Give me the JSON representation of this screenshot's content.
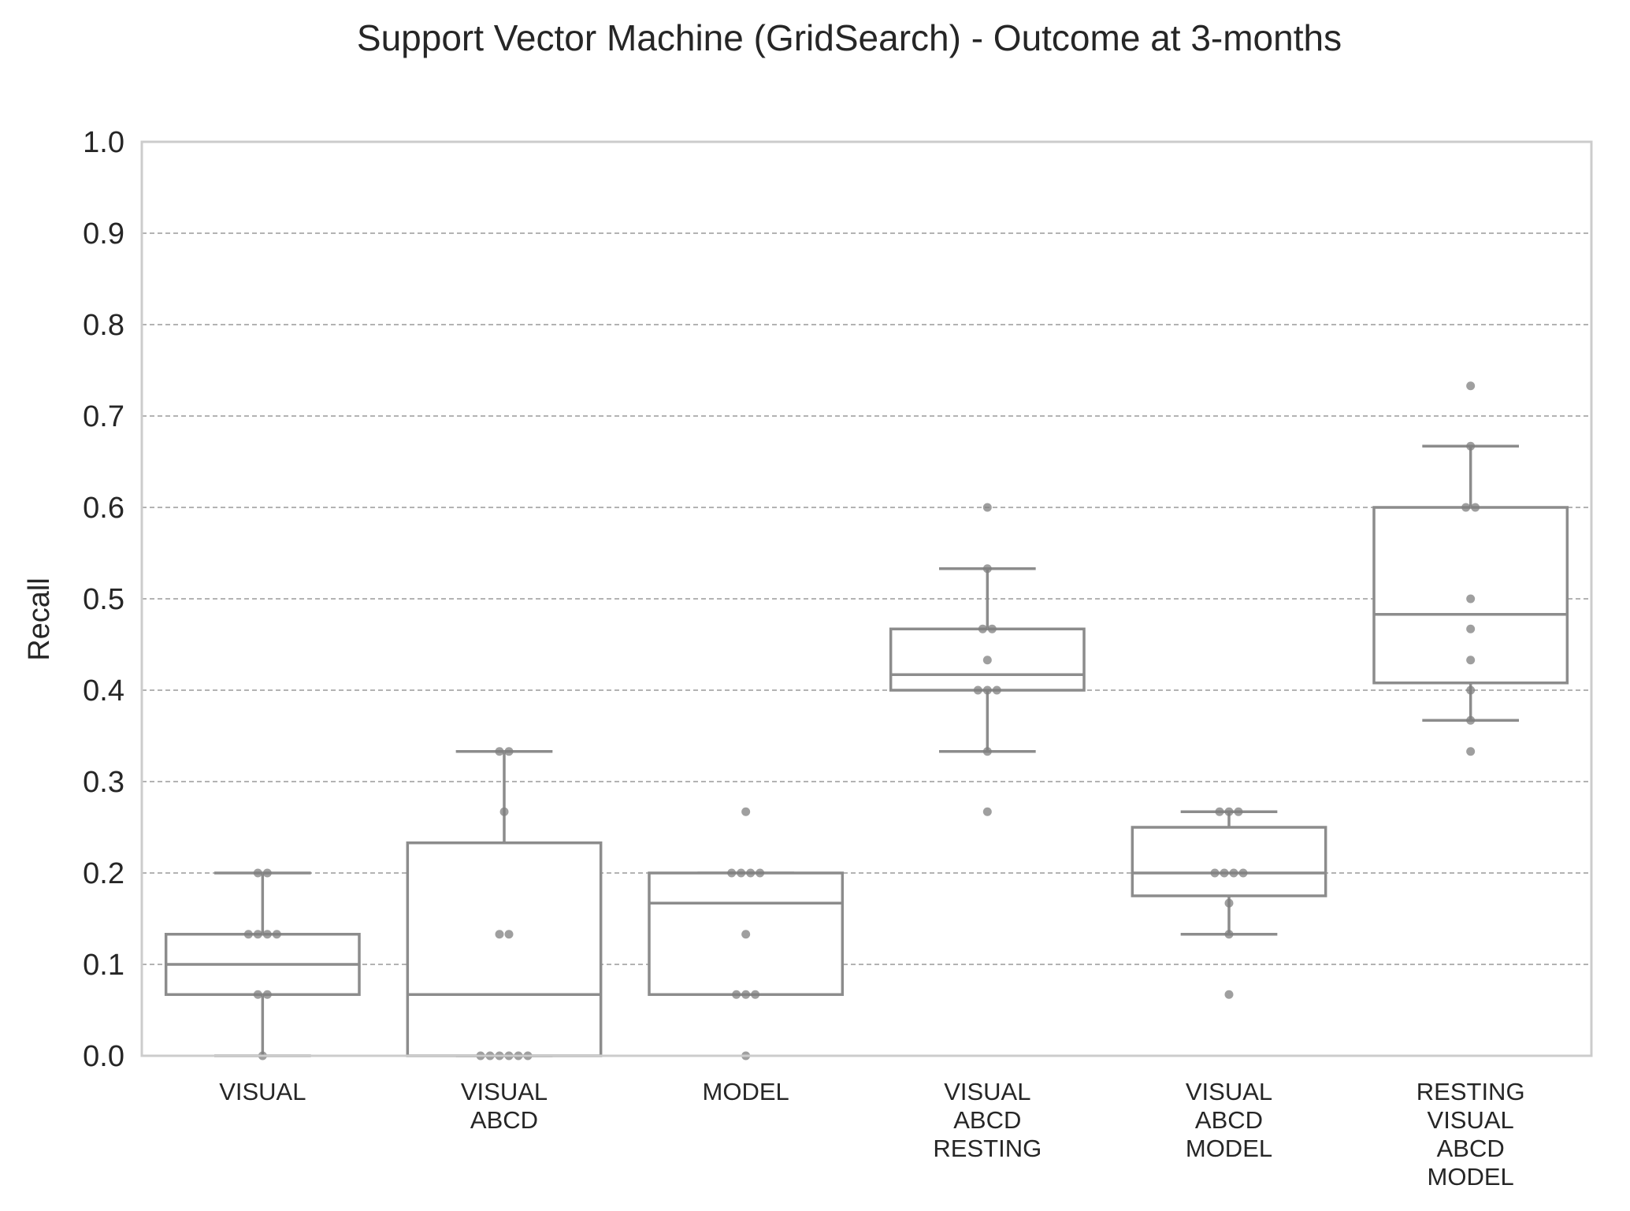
{
  "chart_data": {
    "type": "box",
    "title": "Support Vector Machine (GridSearch) - Outcome at 3-months",
    "ylabel": "Recall",
    "xlabel": "",
    "ylim": [
      0.0,
      1.0
    ],
    "yticks": [
      "0.0",
      "0.1",
      "0.2",
      "0.3",
      "0.4",
      "0.5",
      "0.6",
      "0.7",
      "0.8",
      "0.9",
      "1.0"
    ],
    "grid": true,
    "categories": [
      {
        "label_lines": [
          "VISUAL"
        ]
      },
      {
        "label_lines": [
          "VISUAL",
          "ABCD"
        ]
      },
      {
        "label_lines": [
          "MODEL"
        ]
      },
      {
        "label_lines": [
          "VISUAL",
          "ABCD",
          "RESTING"
        ]
      },
      {
        "label_lines": [
          "VISUAL",
          "ABCD",
          "MODEL"
        ]
      },
      {
        "label_lines": [
          "RESTING",
          "VISUAL",
          "ABCD",
          "MODEL"
        ]
      }
    ],
    "boxes": [
      {
        "whisker_low": 0.0,
        "q1": 0.067,
        "median": 0.1,
        "q3": 0.133,
        "whisker_high": 0.2
      },
      {
        "whisker_low": 0.0,
        "q1": 0.0,
        "median": 0.067,
        "q3": 0.233,
        "whisker_high": 0.333
      },
      {
        "whisker_low": 0.067,
        "q1": 0.067,
        "median": 0.167,
        "q3": 0.2,
        "whisker_high": 0.2
      },
      {
        "whisker_low": 0.333,
        "q1": 0.4,
        "median": 0.417,
        "q3": 0.467,
        "whisker_high": 0.533
      },
      {
        "whisker_low": 0.133,
        "q1": 0.175,
        "median": 0.2,
        "q3": 0.25,
        "whisker_high": 0.267
      },
      {
        "whisker_low": 0.367,
        "q1": 0.408,
        "median": 0.483,
        "q3": 0.6,
        "whisker_high": 0.667
      }
    ],
    "points": [
      [
        0.0,
        0.067,
        0.067,
        0.133,
        0.133,
        0.133,
        0.133,
        0.2,
        0.2
      ],
      [
        0.0,
        0.0,
        0.0,
        0.0,
        0.0,
        0.0,
        0.133,
        0.133,
        0.267,
        0.333,
        0.333
      ],
      [
        0.0,
        0.067,
        0.067,
        0.067,
        0.133,
        0.2,
        0.2,
        0.2,
        0.2,
        0.267
      ],
      [
        0.267,
        0.333,
        0.4,
        0.4,
        0.4,
        0.433,
        0.467,
        0.467,
        0.533,
        0.6
      ],
      [
        0.067,
        0.133,
        0.167,
        0.2,
        0.2,
        0.2,
        0.2,
        0.267,
        0.267,
        0.267
      ],
      [
        0.333,
        0.367,
        0.4,
        0.433,
        0.467,
        0.5,
        0.6,
        0.6,
        0.667,
        0.733
      ]
    ],
    "colors": {
      "box": "#8c8c8c",
      "point": "#7f7f7f",
      "grid": "#9a9a9a",
      "frame": "#cccccc"
    }
  }
}
